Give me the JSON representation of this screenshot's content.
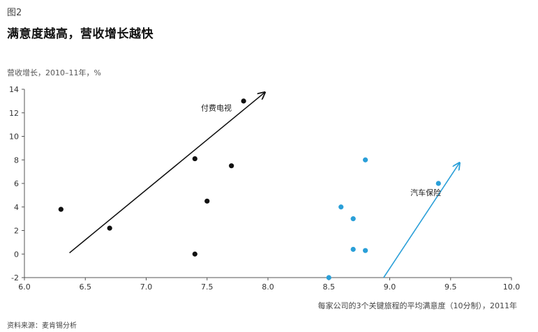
{
  "figure_label": "图2",
  "chart_data": {
    "type": "scatter",
    "title": "满意度越高，营收增长越快",
    "ylabel": "营收增长，2010–11年，%",
    "xlabel": "每家公司的3个关键旅程的平均满意度（10分制），2011年",
    "source": "资料来源：麦肯锡分析",
    "xlim": [
      6.0,
      10.0
    ],
    "ylim": [
      -2,
      14
    ],
    "x_ticks": [
      "6.0",
      "6.5",
      "7.0",
      "7.5",
      "8.0",
      "8.5",
      "9.0",
      "9.5",
      "10.0"
    ],
    "y_ticks": [
      "-2",
      "0",
      "2",
      "4",
      "6",
      "8",
      "10",
      "12",
      "14"
    ],
    "grid": false,
    "series": [
      {
        "name": "付费电视",
        "color": "#111111",
        "x": [
          6.3,
          6.7,
          7.4,
          7.4,
          7.5,
          7.7,
          7.8
        ],
        "y": [
          3.8,
          2.2,
          0.0,
          8.1,
          4.5,
          7.5,
          13.0
        ],
        "trend": {
          "from": [
            6.37,
            0.1
          ],
          "to": [
            7.97,
            13.7
          ]
        }
      },
      {
        "name": "汽车保险",
        "color": "#2a9fd8",
        "x": [
          8.5,
          8.6,
          8.7,
          8.7,
          8.8,
          8.8,
          9.4
        ],
        "y": [
          -2.0,
          4.0,
          3.0,
          0.4,
          0.3,
          8.0,
          6.0
        ],
        "trend": {
          "from": [
            8.95,
            -2.0
          ],
          "to": [
            9.57,
            7.7
          ]
        }
      }
    ],
    "annotations": [
      {
        "text": "付费电视",
        "x": 7.45,
        "y": 12.2
      },
      {
        "text": "汽车保险",
        "x": 9.17,
        "y": 5.0
      }
    ]
  }
}
